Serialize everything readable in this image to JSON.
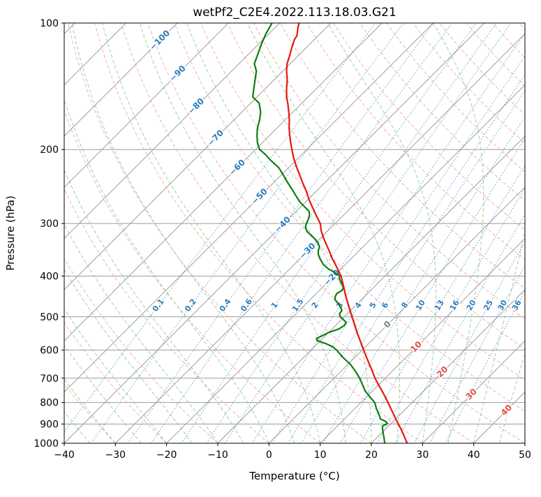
{
  "chart_data": {
    "type": "skewt-log-p",
    "title": "wetPf2_C2E4.2022.113.18.03.G21",
    "xlabel": "Temperature (°C)",
    "ylabel": "Pressure (hPa)",
    "xlim": [
      -40,
      50
    ],
    "pressure_lim": [
      1000,
      100
    ],
    "skew_angle_deg": 45,
    "x_ticks": [
      -40,
      -30,
      -20,
      -10,
      0,
      10,
      20,
      30,
      40,
      50
    ],
    "pressure_ticks": [
      100,
      200,
      300,
      400,
      500,
      600,
      700,
      800,
      900,
      1000
    ],
    "grid_color": "#9e9e9e",
    "isotherms": {
      "start": -120,
      "end": 50,
      "step": 10,
      "color": "#9e9e9e"
    },
    "isotherm_labels": [
      {
        "value": -100,
        "pressure": 110
      },
      {
        "value": -90,
        "pressure": 132
      },
      {
        "value": -80,
        "pressure": 158
      },
      {
        "value": -70,
        "pressure": 188
      },
      {
        "value": -60,
        "pressure": 221
      },
      {
        "value": -50,
        "pressure": 259
      },
      {
        "value": -40,
        "pressure": 302
      },
      {
        "value": -30,
        "pressure": 349
      },
      {
        "value": -20,
        "pressure": 404
      },
      {
        "value": 0,
        "pressure": 522
      },
      {
        "value": 10,
        "pressure": 590
      },
      {
        "value": 20,
        "pressure": 677
      },
      {
        "value": 30,
        "pressure": 765
      },
      {
        "value": 40,
        "pressure": 835
      }
    ],
    "label_colors": {
      "cold": "#2d7dbf",
      "zero": "#7f7f7f",
      "warm": "#d9534f"
    },
    "dry_adiabats": {
      "theta_start": -30,
      "theta_end": 200,
      "step": 10,
      "color": "#f2a49c"
    },
    "moist_adiabats": {
      "t_start": -40,
      "t_end": 45,
      "step": 5,
      "color": "#8cc98c"
    },
    "mixing_ratio_lines": {
      "values": [
        0.1,
        0.2,
        0.4,
        0.6,
        1,
        1.5,
        2,
        3,
        4,
        5,
        6,
        8,
        10,
        13,
        16,
        20,
        25,
        30,
        36
      ],
      "label_pressure": 470,
      "color": "#3f87c5",
      "label_color": "#2d7dbf"
    },
    "series": [
      {
        "name": "temperature",
        "color": "#e8160c",
        "points": [
          [
            1000,
            27.0
          ],
          [
            975,
            25.7
          ],
          [
            950,
            24.4
          ],
          [
            925,
            23.0
          ],
          [
            900,
            21.5
          ],
          [
            875,
            20.0
          ],
          [
            850,
            18.5
          ],
          [
            825,
            16.9
          ],
          [
            800,
            15.3
          ],
          [
            775,
            13.6
          ],
          [
            750,
            11.8
          ],
          [
            725,
            9.9
          ],
          [
            700,
            8.0
          ],
          [
            675,
            6.2
          ],
          [
            650,
            4.3
          ],
          [
            625,
            2.3
          ],
          [
            600,
            0.3
          ],
          [
            575,
            -1.8
          ],
          [
            550,
            -4.0
          ],
          [
            525,
            -6.2
          ],
          [
            500,
            -8.5
          ],
          [
            475,
            -10.9
          ],
          [
            450,
            -13.4
          ],
          [
            425,
            -15.9
          ],
          [
            400,
            -18.6
          ],
          [
            388,
            -20.2
          ],
          [
            375,
            -22.0
          ],
          [
            363,
            -23.8
          ],
          [
            350,
            -25.6
          ],
          [
            338,
            -27.4
          ],
          [
            325,
            -29.4
          ],
          [
            313,
            -31.2
          ],
          [
            300,
            -32.9
          ],
          [
            288,
            -35.1
          ],
          [
            275,
            -37.5
          ],
          [
            263,
            -39.8
          ],
          [
            250,
            -42.2
          ],
          [
            240,
            -44.3
          ],
          [
            230,
            -46.4
          ],
          [
            220,
            -48.6
          ],
          [
            210,
            -50.8
          ],
          [
            200,
            -52.9
          ],
          [
            193,
            -54.4
          ],
          [
            185,
            -56.1
          ],
          [
            178,
            -57.6
          ],
          [
            170,
            -59.2
          ],
          [
            163,
            -60.8
          ],
          [
            155,
            -62.8
          ],
          [
            150,
            -64.2
          ],
          [
            143,
            -65.9
          ],
          [
            137,
            -67.3
          ],
          [
            130,
            -69.3
          ],
          [
            125,
            -70.6
          ],
          [
            120,
            -71.6
          ],
          [
            115,
            -72.7
          ],
          [
            110,
            -73.8
          ],
          [
            107,
            -74.2
          ],
          [
            104,
            -75.1
          ],
          [
            102,
            -75.7
          ],
          [
            100,
            -76.2
          ]
        ]
      },
      {
        "name": "dewpoint",
        "color": "#0f7d0f",
        "points": [
          [
            1000,
            22.6
          ],
          [
            975,
            21.6
          ],
          [
            950,
            20.5
          ],
          [
            925,
            19.4
          ],
          [
            910,
            18.8
          ],
          [
            898,
            19.3
          ],
          [
            888,
            18.6
          ],
          [
            875,
            17.0
          ],
          [
            860,
            16.2
          ],
          [
            850,
            15.6
          ],
          [
            825,
            14.1
          ],
          [
            800,
            12.7
          ],
          [
            775,
            10.6
          ],
          [
            750,
            8.5
          ],
          [
            725,
            6.8
          ],
          [
            700,
            5.0
          ],
          [
            675,
            2.9
          ],
          [
            650,
            0.6
          ],
          [
            625,
            -2.3
          ],
          [
            600,
            -5.0
          ],
          [
            590,
            -6.3
          ],
          [
            580,
            -8.2
          ],
          [
            570,
            -10.6
          ],
          [
            563,
            -11.2
          ],
          [
            552,
            -10.4
          ],
          [
            545,
            -10.0
          ],
          [
            535,
            -8.7
          ],
          [
            525,
            -8.3
          ],
          [
            516,
            -8.5
          ],
          [
            508,
            -9.6
          ],
          [
            500,
            -10.8
          ],
          [
            492,
            -11.5
          ],
          [
            483,
            -11.7
          ],
          [
            473,
            -12.8
          ],
          [
            465,
            -13.8
          ],
          [
            455,
            -15.2
          ],
          [
            448,
            -15.7
          ],
          [
            440,
            -16.0
          ],
          [
            433,
            -15.6
          ],
          [
            427,
            -15.8
          ],
          [
            420,
            -16.6
          ],
          [
            413,
            -17.5
          ],
          [
            406,
            -18.4
          ],
          [
            400,
            -18.9
          ],
          [
            393,
            -20.3
          ],
          [
            385,
            -22.4
          ],
          [
            375,
            -24.4
          ],
          [
            363,
            -26.2
          ],
          [
            355,
            -27.3
          ],
          [
            348,
            -28.0
          ],
          [
            341,
            -28.5
          ],
          [
            334,
            -29.5
          ],
          [
            327,
            -30.8
          ],
          [
            320,
            -32.4
          ],
          [
            313,
            -34.0
          ],
          [
            306,
            -35.1
          ],
          [
            300,
            -35.6
          ],
          [
            294,
            -36.0
          ],
          [
            287,
            -36.6
          ],
          [
            281,
            -37.4
          ],
          [
            275,
            -38.9
          ],
          [
            267,
            -41.0
          ],
          [
            258,
            -43.0
          ],
          [
            250,
            -44.8
          ],
          [
            240,
            -47.2
          ],
          [
            230,
            -49.6
          ],
          [
            221,
            -51.9
          ],
          [
            212,
            -55.0
          ],
          [
            205,
            -57.3
          ],
          [
            200,
            -59.2
          ],
          [
            193,
            -60.9
          ],
          [
            185,
            -62.5
          ],
          [
            178,
            -63.8
          ],
          [
            170,
            -65.0
          ],
          [
            163,
            -66.3
          ],
          [
            155,
            -68.4
          ],
          [
            150,
            -70.8
          ],
          [
            143,
            -72.3
          ],
          [
            137,
            -73.6
          ],
          [
            130,
            -75.2
          ],
          [
            125,
            -77.0
          ],
          [
            118,
            -78.3
          ],
          [
            112,
            -79.5
          ],
          [
            106,
            -80.6
          ],
          [
            100,
            -81.5
          ]
        ]
      }
    ]
  }
}
